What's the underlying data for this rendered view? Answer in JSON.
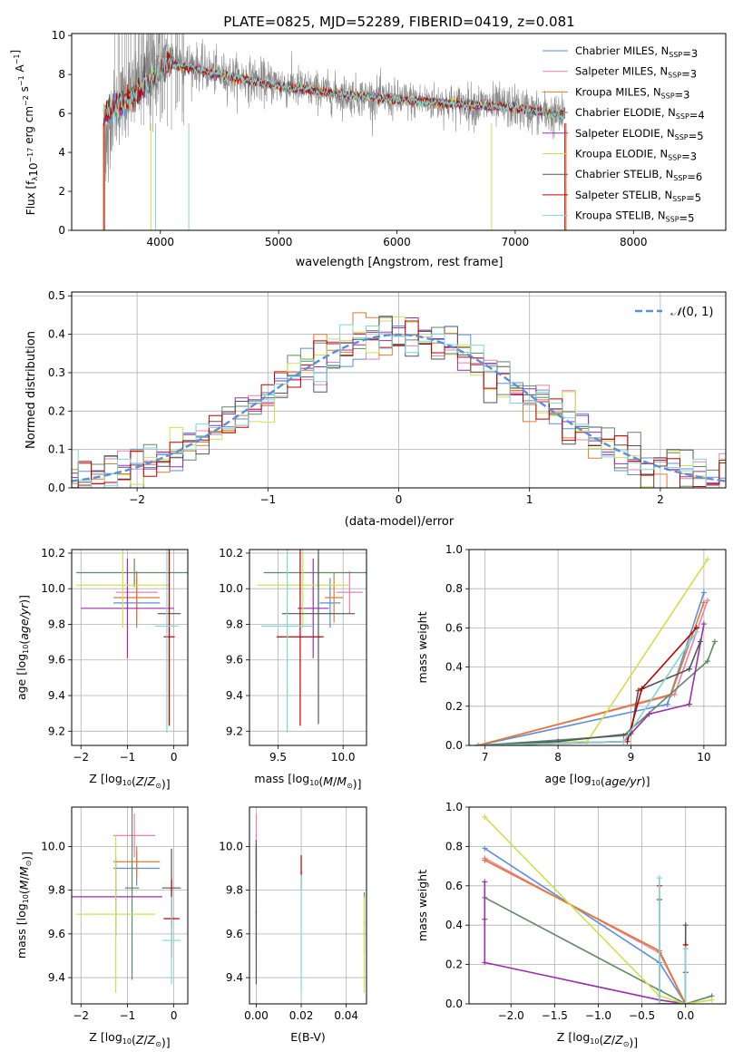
{
  "figure_title": "PLATE=0825, MJD=52289, FIBERID=0419, z=0.081",
  "colors": {
    "Chabrier MILES": "#5b8fd9",
    "Salpeter MILES": "#ec7fb0",
    "Kroupa MILES": "#e07a2e",
    "Chabrier ELODIE": "#5f8a65",
    "Salpeter ELODIE": "#9b2fae",
    "Kroupa ELODIE": "#cfe04e",
    "Chabrier STELIB": "#555555",
    "Salpeter STELIB": "#c00000",
    "Kroupa STELIB": "#7fd6d6",
    "normal_fit": "#5b8fd9"
  },
  "legend_spectrum": [
    {
      "name": "Chabrier MILES",
      "nssp": "3"
    },
    {
      "name": "Salpeter MILES",
      "nssp": "3"
    },
    {
      "name": "Kroupa MILES",
      "nssp": "3"
    },
    {
      "name": "Chabrier ELODIE",
      "nssp": "4"
    },
    {
      "name": "Salpeter ELODIE",
      "nssp": "5"
    },
    {
      "name": "Kroupa ELODIE",
      "nssp": "3"
    },
    {
      "name": "Chabrier STELIB",
      "nssp": "6"
    },
    {
      "name": "Salpeter STELIB",
      "nssp": "5"
    },
    {
      "name": "Kroupa STELIB",
      "nssp": "5"
    }
  ],
  "chart_data": [
    {
      "id": "spectrum",
      "type": "line",
      "title": "PLATE=0825, MJD=52289, FIBERID=0419, z=0.081",
      "xlabel": "wavelength [Angstrom, rest frame]",
      "ylabel": "Flux [f_λ 10^-17 erg cm^-2 s^-1 A^-1]",
      "xlim": [
        3250,
        8780
      ],
      "ylim": [
        0,
        10.1
      ],
      "xticks": [
        4000,
        5000,
        6000,
        7000,
        8000
      ],
      "yticks": [
        0,
        2,
        4,
        6,
        8,
        10
      ],
      "observed_flux_trend": [
        [
          3520,
          5.5
        ],
        [
          3700,
          6.8
        ],
        [
          4050,
          9.0
        ],
        [
          4500,
          8.0
        ],
        [
          5000,
          7.5
        ],
        [
          5500,
          7.0
        ],
        [
          6000,
          6.7
        ],
        [
          6500,
          6.5
        ],
        [
          7000,
          6.3
        ],
        [
          7400,
          5.8
        ]
      ],
      "model_flux_trend": [
        [
          3520,
          6.0
        ],
        [
          3700,
          6.6
        ],
        [
          3900,
          7.6
        ],
        [
          4050,
          8.6
        ],
        [
          4500,
          8.0
        ],
        [
          5000,
          7.4
        ],
        [
          5500,
          7.0
        ],
        [
          6000,
          6.7
        ],
        [
          6500,
          6.5
        ],
        [
          7000,
          6.3
        ],
        [
          7400,
          5.9
        ]
      ],
      "grid": false,
      "legend_position": "upper right"
    },
    {
      "id": "residuals",
      "type": "histogram",
      "xlabel": "(data-model)/error",
      "ylabel": "Normed distribution",
      "xlim": [
        -2.5,
        2.5
      ],
      "ylim": [
        0,
        0.51
      ],
      "xticks": [
        -2,
        -1,
        0,
        1,
        2
      ],
      "yticks": [
        0.0,
        0.1,
        0.2,
        0.3,
        0.4,
        0.5
      ],
      "bin_width": 0.1,
      "fit_label": "N(0, 1)",
      "fit": {
        "mean": 0,
        "sigma": 1
      },
      "grid": true,
      "legend_position": "upper right"
    },
    {
      "id": "age_vs_Z",
      "type": "errorbar",
      "xlabel": "Z [log10(Z/Z☉)]",
      "ylabel": "age [log10(age/yr)]",
      "xlim": [
        -2.2,
        0.3
      ],
      "ylim": [
        9.12,
        10.22
      ],
      "xticks": [
        -2,
        -1,
        0
      ],
      "yticks": [
        9.2,
        9.4,
        9.6,
        9.8,
        10.0,
        10.2
      ],
      "points": [
        {
          "model": "Chabrier MILES",
          "x": -0.8,
          "xerr": 0.5,
          "y": 9.92,
          "yerr": 0.14
        },
        {
          "model": "Salpeter MILES",
          "x": -0.8,
          "xerr": 0.45,
          "y": 9.98,
          "yerr": 0.12
        },
        {
          "model": "Kroupa MILES",
          "x": -0.8,
          "xerr": 0.5,
          "y": 9.95,
          "yerr": 0.14
        },
        {
          "model": "Chabrier ELODIE",
          "x": -0.85,
          "xerr": 1.25,
          "y": 10.09,
          "yerr": 0.08
        },
        {
          "model": "Salpeter ELODIE",
          "x": -1.0,
          "xerr": 1.0,
          "y": 9.89,
          "yerr": 0.28
        },
        {
          "model": "Kroupa ELODIE",
          "x": -1.1,
          "xerr": 1.0,
          "y": 10.02,
          "yerr": 0.24
        },
        {
          "model": "Chabrier STELIB",
          "x": -0.1,
          "xerr": 0.25,
          "y": 9.86,
          "yerr": 0.62
        },
        {
          "model": "Salpeter STELIB",
          "x": -0.1,
          "xerr": 0.12,
          "y": 9.73,
          "yerr": 0.5
        },
        {
          "model": "Kroupa STELIB",
          "x": -0.15,
          "xerr": 0.25,
          "y": 9.79,
          "yerr": 0.6
        }
      ],
      "grid": true
    },
    {
      "id": "age_vs_mass",
      "type": "errorbar",
      "xlabel": "mass [log10(M/M☉)]",
      "ylabel": "",
      "xlim": [
        9.28,
        10.18
      ],
      "ylim": [
        9.12,
        10.22
      ],
      "xticks": [
        9.5,
        10.0
      ],
      "yticks": [
        9.2,
        9.4,
        9.6,
        9.8,
        10.0,
        10.2
      ],
      "points": [
        {
          "model": "Chabrier MILES",
          "x": 9.9,
          "xerr": 0.08,
          "y": 9.92,
          "yerr": 0.14
        },
        {
          "model": "Salpeter MILES",
          "x": 10.05,
          "xerr": 0.1,
          "y": 9.98,
          "yerr": 0.12
        },
        {
          "model": "Kroupa MILES",
          "x": 9.93,
          "xerr": 0.07,
          "y": 9.95,
          "yerr": 0.14
        },
        {
          "model": "Chabrier ELODIE",
          "x": 9.81,
          "xerr": 0.42,
          "y": 10.09,
          "yerr": 0.08
        },
        {
          "model": "Salpeter ELODIE",
          "x": 9.77,
          "xerr": 0.12,
          "y": 9.89,
          "yerr": 0.28
        },
        {
          "model": "Kroupa ELODIE",
          "x": 9.69,
          "xerr": 0.35,
          "y": 10.02,
          "yerr": 0.24
        },
        {
          "model": "Chabrier STELIB",
          "x": 9.81,
          "xerr": 0.28,
          "y": 9.86,
          "yerr": 0.62
        },
        {
          "model": "Salpeter STELIB",
          "x": 9.67,
          "xerr": 0.18,
          "y": 9.73,
          "yerr": 0.5
        },
        {
          "model": "Kroupa STELIB",
          "x": 9.57,
          "xerr": 0.2,
          "y": 9.79,
          "yerr": 0.6
        }
      ],
      "grid": true
    },
    {
      "id": "mass_weight_vs_age",
      "type": "line",
      "xlabel": "age [log10(age/yr)]",
      "ylabel": "mass weight",
      "xlim": [
        6.78,
        10.3
      ],
      "ylim": [
        0,
        1.0
      ],
      "xticks": [
        7,
        8,
        9,
        10
      ],
      "yticks": [
        0.0,
        0.2,
        0.4,
        0.6,
        0.8,
        1.0
      ],
      "series": [
        {
          "name": "Chabrier MILES",
          "x": [
            6.9,
            9.5,
            10.0
          ],
          "values": [
            0.0,
            0.21,
            0.78
          ]
        },
        {
          "name": "Salpeter MILES",
          "x": [
            6.9,
            9.6,
            10.05
          ],
          "values": [
            0.0,
            0.26,
            0.74
          ]
        },
        {
          "name": "Kroupa MILES",
          "x": [
            6.9,
            9.55,
            10.0
          ],
          "values": [
            0.0,
            0.26,
            0.73
          ]
        },
        {
          "name": "Chabrier ELODIE",
          "x": [
            6.9,
            8.9,
            10.05,
            10.15
          ],
          "values": [
            0.0,
            0.05,
            0.43,
            0.53
          ]
        },
        {
          "name": "Salpeter ELODIE",
          "x": [
            6.9,
            8.9,
            9.25,
            9.8,
            10.0
          ],
          "values": [
            0.0,
            0.02,
            0.16,
            0.21,
            0.62
          ]
        },
        {
          "name": "Kroupa ELODIE",
          "x": [
            6.9,
            8.4,
            10.05
          ],
          "values": [
            0.0,
            0.02,
            0.95
          ]
        },
        {
          "name": "Chabrier STELIB",
          "x": [
            6.9,
            8.0,
            9.0,
            9.1,
            9.8,
            9.95
          ],
          "values": [
            0.0,
            0.02,
            0.06,
            0.28,
            0.39,
            0.53
          ]
        },
        {
          "name": "Salpeter STELIB",
          "x": [
            6.9,
            8.95,
            9.15,
            9.9
          ],
          "values": [
            0.0,
            0.02,
            0.29,
            0.6
          ]
        },
        {
          "name": "Kroupa STELIB",
          "x": [
            6.9,
            8.9,
            9.9
          ],
          "values": [
            0.0,
            0.02,
            0.58
          ]
        }
      ],
      "grid": true
    },
    {
      "id": "mass_vs_Z",
      "type": "errorbar",
      "xlabel": "Z [log10(Z/Z☉)]",
      "ylabel": "mass [log10(M/M☉)]",
      "xlim": [
        -2.2,
        0.3
      ],
      "ylim": [
        9.28,
        10.18
      ],
      "xticks": [
        -2,
        -1,
        0
      ],
      "yticks": [
        9.4,
        9.6,
        9.8,
        10.0
      ],
      "points": [
        {
          "model": "Chabrier MILES",
          "x": -0.8,
          "xerr": 0.5,
          "y": 9.9,
          "yerr": 0.08
        },
        {
          "model": "Salpeter MILES",
          "x": -0.85,
          "xerr": 0.45,
          "y": 10.05,
          "yerr": 0.1
        },
        {
          "model": "Kroupa MILES",
          "x": -0.8,
          "xerr": 0.5,
          "y": 9.93,
          "yerr": 0.07
        },
        {
          "model": "Chabrier ELODIE",
          "x": -0.9,
          "xerr": 0.15,
          "y": 9.81,
          "yerr": 0.42
        },
        {
          "model": "Salpeter ELODIE",
          "x": -1.25,
          "xerr": 1.0,
          "y": 9.77,
          "yerr": 0.18
        },
        {
          "model": "Kroupa ELODIE",
          "x": -1.25,
          "xerr": 0.85,
          "y": 9.69,
          "yerr": 0.36
        },
        {
          "model": "Chabrier STELIB",
          "x": -0.05,
          "xerr": 0.2,
          "y": 9.81,
          "yerr": 0.18
        },
        {
          "model": "Salpeter STELIB",
          "x": -0.05,
          "xerr": 0.17,
          "y": 9.67,
          "yerr": 0.18
        },
        {
          "model": "Kroupa STELIB",
          "x": -0.05,
          "xerr": 0.2,
          "y": 9.57,
          "yerr": 0.2
        }
      ],
      "grid": true
    },
    {
      "id": "mass_vs_EBV",
      "type": "errorbar",
      "xlabel": "E(B-V)",
      "ylabel": "",
      "xlim": [
        -0.003,
        0.049
      ],
      "ylim": [
        9.28,
        10.18
      ],
      "xticks": [
        0.0,
        0.02,
        0.04
      ],
      "yticks": [
        9.4,
        9.6,
        9.8,
        10.0
      ],
      "points": [
        {
          "model": "Chabrier MILES",
          "x": 0.0,
          "y": 9.9,
          "yerr": 0.08
        },
        {
          "model": "Salpeter MILES",
          "x": 0.0,
          "y": 10.05,
          "yerr": 0.1
        },
        {
          "model": "Kroupa MILES",
          "x": 0.0,
          "y": 9.93,
          "yerr": 0.07
        },
        {
          "model": "Chabrier ELODIE",
          "x": 0.048,
          "y": 9.65,
          "yerr": 0.14
        },
        {
          "model": "Salpeter ELODIE",
          "x": 0.0,
          "y": 9.77,
          "yerr": 0.24
        },
        {
          "model": "Kroupa ELODIE",
          "x": 0.048,
          "y": 9.55,
          "yerr": 0.22
        },
        {
          "model": "Chabrier STELIB",
          "x": 0.0,
          "y": 9.7,
          "yerr": 0.33
        },
        {
          "model": "Salpeter STELIB",
          "x": 0.02,
          "y": 9.88,
          "yerr": 0.08
        },
        {
          "model": "Kroupa STELIB",
          "x": 0.02,
          "y": 9.6,
          "yerr": 0.27
        }
      ],
      "grid": true
    },
    {
      "id": "mass_weight_vs_Z",
      "type": "line",
      "xlabel": "Z [log10(Z/Z☉)]",
      "ylabel": "mass weight",
      "xlim": [
        -2.48,
        0.46
      ],
      "ylim": [
        0,
        1.0
      ],
      "xticks": [
        -2.0,
        -1.5,
        -1.0,
        -0.5,
        0.0
      ],
      "yticks": [
        0.0,
        0.2,
        0.4,
        0.6,
        0.8,
        1.0
      ],
      "series": [
        {
          "name": "Chabrier MILES",
          "x": [
            -2.3,
            -0.3,
            0.0
          ],
          "values": [
            0.79,
            0.21,
            0.0
          ]
        },
        {
          "name": "Salpeter MILES",
          "x": [
            -2.3,
            -0.3,
            0.0
          ],
          "values": [
            0.74,
            0.26,
            0.0
          ]
        },
        {
          "name": "Kroupa MILES",
          "x": [
            -2.3,
            -0.3,
            0.0
          ],
          "values": [
            0.73,
            0.27,
            0.0
          ]
        },
        {
          "name": "Chabrier ELODIE",
          "x": [
            -2.3,
            -0.3,
            0.0,
            0.3
          ],
          "values": [
            0.54,
            0.07,
            0.0,
            0.04
          ]
        },
        {
          "name": "Salpeter ELODIE",
          "x": [
            -2.3,
            -2.3,
            -2.3,
            -0.3,
            0.0,
            0.0
          ],
          "values": [
            0.62,
            0.43,
            0.21,
            0.02,
            0.0,
            0.16
          ]
        },
        {
          "name": "Kroupa ELODIE",
          "x": [
            -2.3,
            -0.3,
            0.0,
            0.3
          ],
          "values": [
            0.95,
            0.04,
            0.0,
            0.02
          ]
        },
        {
          "name": "Chabrier STELIB",
          "x": [
            -0.3,
            -0.3,
            0.0,
            0.0
          ],
          "values": [
            0.53,
            0.0,
            0.0,
            0.4
          ]
        },
        {
          "name": "Salpeter STELIB",
          "x": [
            -0.3,
            -0.3,
            0.0,
            0.0
          ],
          "values": [
            0.6,
            0.0,
            0.0,
            0.3
          ]
        },
        {
          "name": "Kroupa STELIB",
          "x": [
            -0.3,
            -0.3,
            0.0,
            0.0
          ],
          "values": [
            0.64,
            0.0,
            0.0,
            0.28
          ]
        }
      ],
      "grid": true
    }
  ]
}
